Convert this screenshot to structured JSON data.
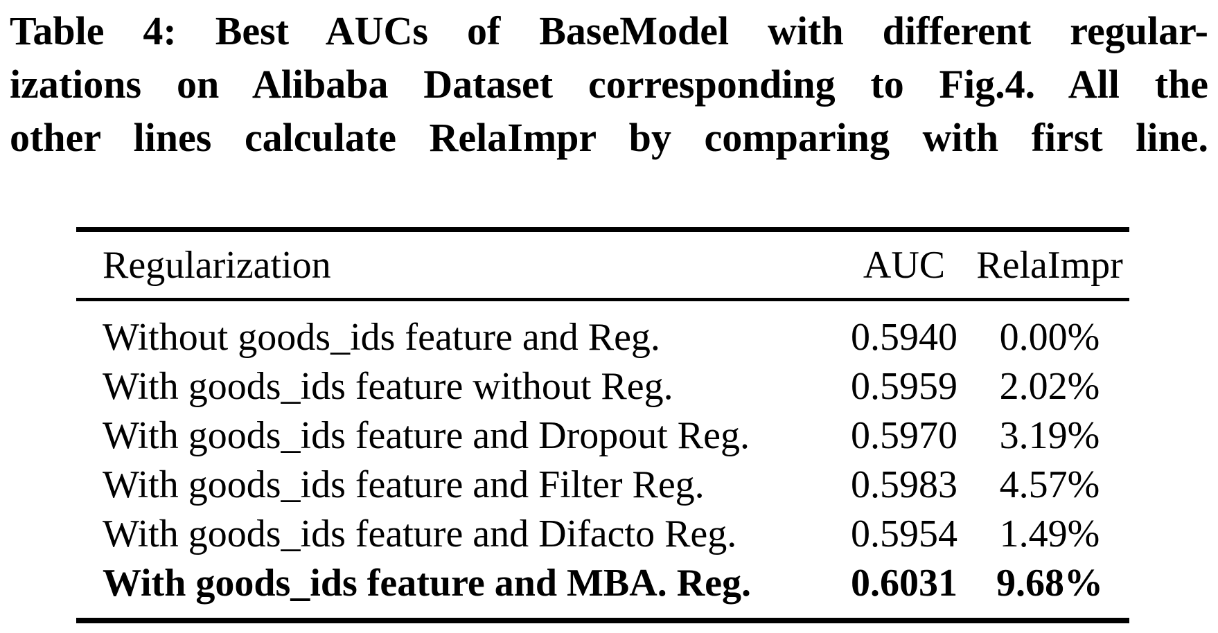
{
  "caption": {
    "lines": [
      "Table 4: Best AUCs of BaseModel with different regular-",
      "izations on Alibaba Dataset corresponding to Fig.4. All the",
      "other lines calculate RelaImpr by comparing with first line."
    ]
  },
  "table": {
    "headers": {
      "regularization": "Regularization",
      "auc": "AUC",
      "relaimpr": "RelaImpr"
    },
    "rows": [
      {
        "regularization": "Without goods_ids feature and Reg.",
        "auc": "0.5940",
        "relaimpr": "0.00%"
      },
      {
        "regularization": "With goods_ids feature without Reg.",
        "auc": "0.5959",
        "relaimpr": "2.02%"
      },
      {
        "regularization": "With goods_ids feature and Dropout Reg.",
        "auc": "0.5970",
        "relaimpr": "3.19%"
      },
      {
        "regularization": "With goods_ids feature and Filter Reg.",
        "auc": "0.5983",
        "relaimpr": "4.57%"
      },
      {
        "regularization": "With goods_ids feature and Difacto Reg.",
        "auc": "0.5954",
        "relaimpr": "1.49%"
      },
      {
        "regularization": "With goods_ids feature and MBA. Reg.",
        "auc": "0.6031",
        "relaimpr": "9.68%"
      }
    ],
    "highlight_row_index": 5
  },
  "colors": {
    "text": "#000000",
    "background": "#ffffff",
    "rule": "#000000"
  }
}
